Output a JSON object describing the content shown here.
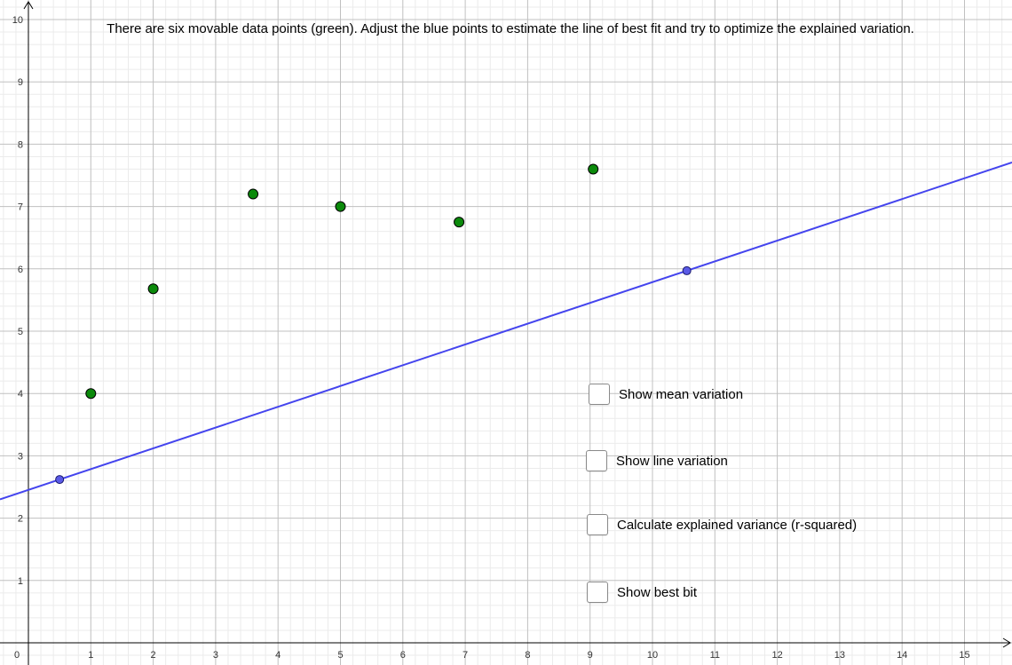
{
  "instruction": "There are six movable data points (green). Adjust the blue points to estimate the line of best fit and try to optimize the explained variation.",
  "checkboxes": [
    {
      "label": "Show mean variation",
      "checked": false
    },
    {
      "label": "Show line variation",
      "checked": false
    },
    {
      "label": "Calculate explained variance (r-squared)",
      "checked": false
    },
    {
      "label": "Show best bit",
      "checked": false
    }
  ],
  "colors": {
    "data_point": "#0b8a0b",
    "control_point": "#5a5ae6",
    "line": "#4444ee",
    "axis": "#000000"
  },
  "chart_data": {
    "type": "scatter",
    "x_ticks": [
      "0",
      "1",
      "2",
      "3",
      "4",
      "5",
      "6",
      "7",
      "8",
      "9",
      "10",
      "11",
      "12",
      "13",
      "14",
      "15"
    ],
    "y_ticks": [
      "1",
      "2",
      "3",
      "4",
      "5",
      "6",
      "7",
      "8",
      "9",
      "10"
    ],
    "xlim": [
      0,
      15.8
    ],
    "ylim": [
      0,
      10
    ],
    "grid": true,
    "series": [
      {
        "points": [
          [
            1,
            4.0
          ],
          [
            2,
            5.68
          ],
          [
            3.6,
            7.2
          ],
          [
            5,
            7.0
          ],
          [
            6.9,
            6.75
          ],
          [
            9.05,
            7.6
          ]
        ]
      }
    ],
    "control_points": [
      [
        0.5,
        2.62
      ],
      [
        10.55,
        5.97
      ]
    ]
  }
}
